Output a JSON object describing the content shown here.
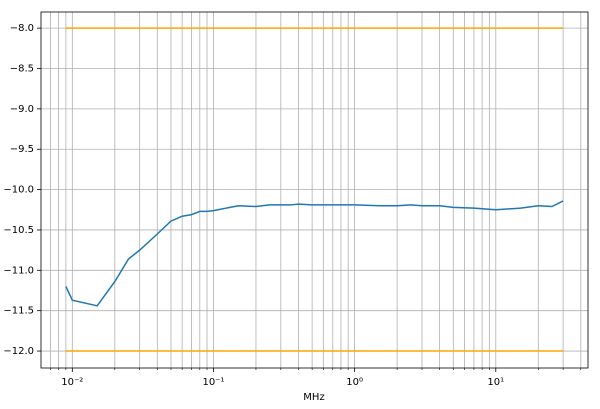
{
  "chart_data": {
    "type": "line",
    "xlabel": "MHz",
    "xscale": "log",
    "grid": true,
    "xlim": [
      0.006,
      45
    ],
    "ylim": [
      -12.21,
      -7.8
    ],
    "xticks": [
      {
        "value": 0.01,
        "label": "10⁻²"
      },
      {
        "value": 0.1,
        "label": "10⁻¹"
      },
      {
        "value": 1,
        "label": "10⁰"
      },
      {
        "value": 10,
        "label": "10¹"
      }
    ],
    "xminorticks": [
      0.007,
      0.008,
      0.009,
      0.02,
      0.03,
      0.04,
      0.05,
      0.06,
      0.07,
      0.08,
      0.09,
      0.2,
      0.3,
      0.4,
      0.5,
      0.6,
      0.7,
      0.8,
      0.9,
      2,
      3,
      4,
      5,
      6,
      7,
      8,
      9,
      20,
      30,
      40
    ],
    "yticks": [
      {
        "value": -8,
        "label": "−8.0"
      },
      {
        "value": -8.5,
        "label": "−8.5"
      },
      {
        "value": -9,
        "label": "−9.0"
      },
      {
        "value": -9.5,
        "label": "−9.5"
      },
      {
        "value": -10,
        "label": "−10.0"
      },
      {
        "value": -10.5,
        "label": "−10.5"
      },
      {
        "value": -11,
        "label": "−11.0"
      },
      {
        "value": -11.5,
        "label": "−11.5"
      },
      {
        "value": -12,
        "label": "−12.0"
      }
    ],
    "series": [
      {
        "color": "#ffa500",
        "x": [
          0.009,
          30
        ],
        "values": [
          -8,
          -8
        ]
      },
      {
        "color": "#ffa500",
        "x": [
          0.009,
          30
        ],
        "values": [
          -12,
          -12
        ]
      },
      {
        "color": "#1f77b4",
        "x": [
          0.009,
          0.01,
          0.015,
          0.02,
          0.025,
          0.03,
          0.04,
          0.05,
          0.06,
          0.07,
          0.08,
          0.09,
          0.1,
          0.15,
          0.2,
          0.25,
          0.3,
          0.35,
          0.4,
          0.5,
          0.7,
          1,
          1.5,
          2,
          2.5,
          3,
          4,
          5,
          7,
          10,
          15,
          20,
          25,
          30
        ],
        "values": [
          -11.2,
          -11.37,
          -11.44,
          -11.14,
          -10.86,
          -10.75,
          -10.55,
          -10.39,
          -10.33,
          -10.31,
          -10.27,
          -10.27,
          -10.26,
          -10.2,
          -10.21,
          -10.19,
          -10.19,
          -10.19,
          -10.18,
          -10.19,
          -10.19,
          -10.19,
          -10.2,
          -10.2,
          -10.19,
          -10.2,
          -10.2,
          -10.22,
          -10.23,
          -10.25,
          -10.23,
          -10.2,
          -10.21,
          -10.14
        ]
      }
    ]
  }
}
